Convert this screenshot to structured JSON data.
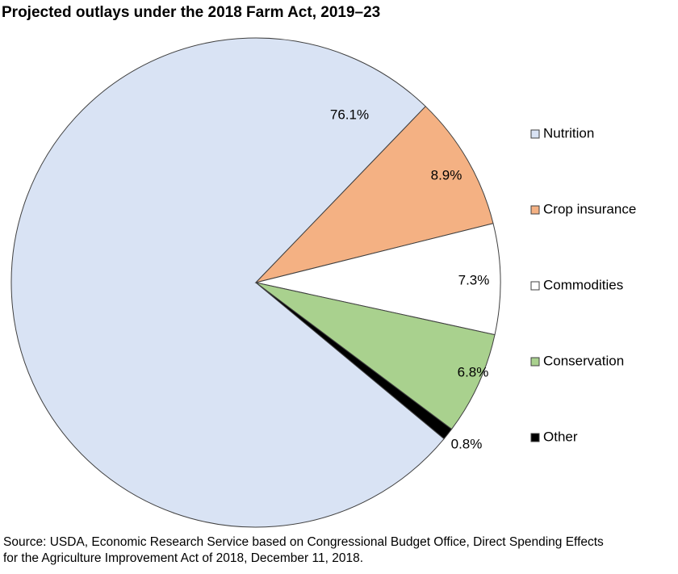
{
  "chart_data": {
    "type": "pie",
    "title": "Projected outlays under the 2018 Farm Act, 2019–23",
    "categories": [
      "Nutrition",
      "Crop insurance",
      "Commodities",
      "Conservation",
      "Other"
    ],
    "values": [
      76.1,
      8.9,
      7.3,
      6.8,
      0.8
    ],
    "value_labels": [
      "76.1%",
      "8.9%",
      "7.3%",
      "6.8%",
      "0.8%"
    ],
    "colors": [
      "#d9e3f4",
      "#f4b183",
      "#ffffff",
      "#a9d18e",
      "#000000"
    ],
    "legend": "right",
    "source": [
      "Source: USDA, Economic Research Service based on Congressional Budget Office, Direct Spending Effects",
      "for the Agriculture Improvement Act of 2018, December 11, 2018."
    ]
  }
}
